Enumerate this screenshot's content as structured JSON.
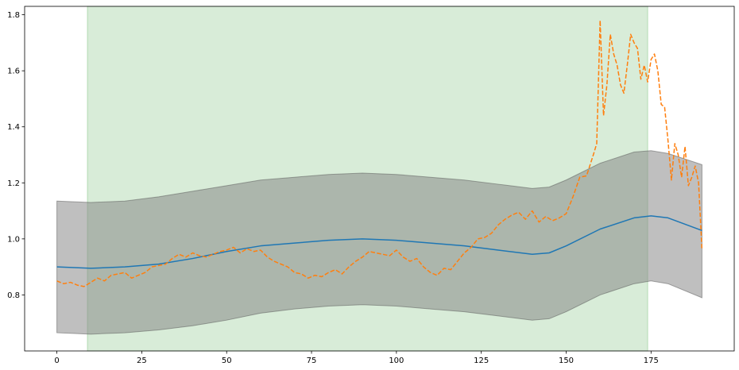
{
  "chart_data": {
    "type": "line",
    "title": "",
    "xlabel": "",
    "ylabel": "",
    "xlim": [
      -9.5,
      199.5
    ],
    "ylim": [
      0.6,
      1.83
    ],
    "grid": false,
    "x_ticks": [
      0,
      25,
      50,
      75,
      100,
      125,
      150,
      175
    ],
    "y_ticks": [
      0.8,
      1.0,
      1.2,
      1.4,
      1.6,
      1.8
    ],
    "x_tick_labels": [
      "0",
      "25",
      "50",
      "75",
      "100",
      "125",
      "150",
      "175"
    ],
    "y_tick_labels": [
      "0.8",
      "1.0",
      "1.2",
      "1.4",
      "1.6",
      "1.8"
    ],
    "highlight_span": {
      "x_start": 9,
      "x_end": 174,
      "color": "#d8ecd8"
    },
    "band": {
      "color": "#808080",
      "x": [
        0,
        10,
        20,
        30,
        40,
        50,
        60,
        70,
        80,
        90,
        100,
        110,
        120,
        130,
        140,
        145,
        150,
        160,
        170,
        175,
        180,
        190
      ],
      "upper": [
        1.135,
        1.13,
        1.135,
        1.15,
        1.17,
        1.19,
        1.21,
        1.22,
        1.23,
        1.235,
        1.23,
        1.22,
        1.21,
        1.195,
        1.18,
        1.185,
        1.21,
        1.27,
        1.31,
        1.315,
        1.305,
        1.265
      ],
      "lower": [
        0.665,
        0.66,
        0.665,
        0.675,
        0.69,
        0.71,
        0.735,
        0.75,
        0.76,
        0.765,
        0.76,
        0.75,
        0.74,
        0.725,
        0.71,
        0.715,
        0.74,
        0.8,
        0.84,
        0.85,
        0.84,
        0.79
      ]
    },
    "series": [
      {
        "color": "#1f77b4",
        "style": "solid",
        "x": [
          0,
          10,
          20,
          30,
          40,
          50,
          60,
          70,
          80,
          90,
          100,
          110,
          120,
          130,
          140,
          145,
          150,
          160,
          170,
          175,
          180,
          190
        ],
        "y": [
          0.9,
          0.895,
          0.9,
          0.91,
          0.93,
          0.955,
          0.975,
          0.985,
          0.995,
          1.0,
          0.995,
          0.985,
          0.975,
          0.96,
          0.945,
          0.95,
          0.975,
          1.035,
          1.075,
          1.082,
          1.075,
          1.03
        ]
      },
      {
        "color": "#ff7f0e",
        "style": "dashed",
        "x": [
          0,
          2,
          4,
          6,
          8,
          10,
          12,
          14,
          16,
          18,
          20,
          22,
          24,
          26,
          28,
          30,
          32,
          34,
          36,
          38,
          40,
          42,
          44,
          46,
          48,
          50,
          52,
          54,
          56,
          58,
          60,
          62,
          64,
          66,
          68,
          70,
          72,
          74,
          76,
          78,
          80,
          82,
          84,
          86,
          88,
          90,
          92,
          94,
          96,
          98,
          100,
          102,
          104,
          106,
          108,
          110,
          112,
          114,
          116,
          118,
          120,
          122,
          124,
          126,
          128,
          130,
          132,
          134,
          136,
          138,
          140,
          142,
          144,
          146,
          148,
          150,
          152,
          154,
          156,
          158,
          159,
          160,
          161,
          162,
          163,
          164,
          165,
          166,
          167,
          168,
          169,
          170,
          171,
          172,
          173,
          174,
          175,
          176,
          177,
          178,
          179,
          180,
          181,
          182,
          183,
          184,
          185,
          186,
          187,
          188,
          189,
          190
        ],
        "y": [
          0.85,
          0.84,
          0.845,
          0.835,
          0.83,
          0.845,
          0.86,
          0.85,
          0.87,
          0.875,
          0.88,
          0.86,
          0.87,
          0.88,
          0.9,
          0.905,
          0.91,
          0.93,
          0.945,
          0.935,
          0.95,
          0.94,
          0.935,
          0.945,
          0.955,
          0.96,
          0.97,
          0.95,
          0.965,
          0.955,
          0.96,
          0.935,
          0.92,
          0.91,
          0.9,
          0.88,
          0.875,
          0.86,
          0.87,
          0.865,
          0.88,
          0.89,
          0.875,
          0.9,
          0.92,
          0.935,
          0.955,
          0.95,
          0.945,
          0.94,
          0.96,
          0.935,
          0.92,
          0.93,
          0.9,
          0.88,
          0.87,
          0.895,
          0.89,
          0.92,
          0.95,
          0.97,
          1.0,
          1.005,
          1.02,
          1.05,
          1.07,
          1.085,
          1.095,
          1.07,
          1.1,
          1.06,
          1.08,
          1.065,
          1.075,
          1.09,
          1.15,
          1.22,
          1.225,
          1.3,
          1.34,
          1.78,
          1.44,
          1.55,
          1.73,
          1.66,
          1.62,
          1.55,
          1.52,
          1.62,
          1.73,
          1.7,
          1.68,
          1.57,
          1.62,
          1.56,
          1.64,
          1.66,
          1.6,
          1.48,
          1.47,
          1.35,
          1.21,
          1.34,
          1.3,
          1.22,
          1.33,
          1.19,
          1.22,
          1.26,
          1.2,
          0.96
        ]
      }
    ]
  }
}
